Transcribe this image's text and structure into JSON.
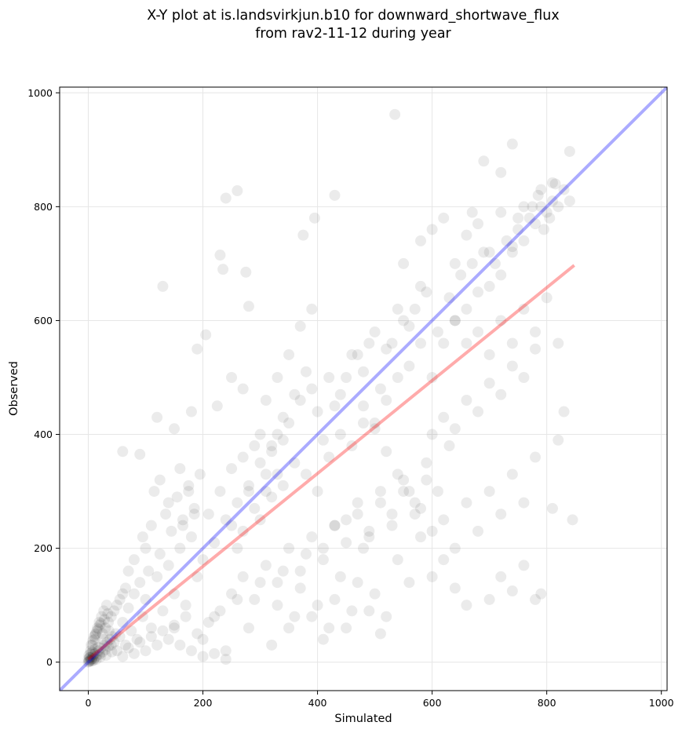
{
  "chart_data": {
    "type": "scatter",
    "title": "X-Y plot at is.landsvirkjun.b10 for downward_shortwave_flux",
    "subtitle": "from rav2-11-12 during year",
    "xlabel": "Simulated",
    "ylabel": "Observed",
    "xlim": [
      -50,
      1010
    ],
    "ylim": [
      -50,
      1010
    ],
    "xticks": [
      0,
      200,
      400,
      600,
      800,
      1000
    ],
    "yticks": [
      0,
      200,
      400,
      600,
      800,
      1000
    ],
    "xtick_labels": [
      "0",
      "200",
      "400",
      "600",
      "800",
      "1000"
    ],
    "ytick_labels": [
      "0",
      "200",
      "400",
      "600",
      "800",
      "1000"
    ],
    "grid": true,
    "point_color": "#000000",
    "point_opacity": 0.08,
    "identity_line": {
      "from": [
        -50,
        -50
      ],
      "to": [
        1010,
        1010
      ],
      "color": "#0000ff"
    },
    "fit_line": {
      "from": [
        0,
        5
      ],
      "to": [
        848,
        697
      ],
      "color": "#ff0000"
    },
    "points": [
      [
        0,
        0
      ],
      [
        2,
        3
      ],
      [
        5,
        4
      ],
      [
        8,
        10
      ],
      [
        10,
        6
      ],
      [
        12,
        15
      ],
      [
        15,
        12
      ],
      [
        18,
        20
      ],
      [
        20,
        14
      ],
      [
        22,
        25
      ],
      [
        25,
        18
      ],
      [
        28,
        30
      ],
      [
        30,
        22
      ],
      [
        33,
        35
      ],
      [
        35,
        28
      ],
      [
        38,
        40
      ],
      [
        40,
        30
      ],
      [
        42,
        45
      ],
      [
        45,
        35
      ],
      [
        48,
        50
      ],
      [
        3,
        8
      ],
      [
        6,
        2
      ],
      [
        9,
        14
      ],
      [
        14,
        5
      ],
      [
        17,
        26
      ],
      [
        21,
        9
      ],
      [
        26,
        40
      ],
      [
        31,
        12
      ],
      [
        36,
        55
      ],
      [
        41,
        18
      ],
      [
        1,
        12
      ],
      [
        4,
        20
      ],
      [
        7,
        30
      ],
      [
        11,
        40
      ],
      [
        13,
        50
      ],
      [
        16,
        60
      ],
      [
        19,
        70
      ],
      [
        23,
        80
      ],
      [
        27,
        90
      ],
      [
        32,
        100
      ],
      [
        50,
        20
      ],
      [
        55,
        45
      ],
      [
        60,
        70
      ],
      [
        65,
        30
      ],
      [
        70,
        95
      ],
      [
        75,
        55
      ],
      [
        80,
        120
      ],
      [
        85,
        40
      ],
      [
        90,
        140
      ],
      [
        95,
        80
      ],
      [
        100,
        110
      ],
      [
        110,
        60
      ],
      [
        120,
        150
      ],
      [
        130,
        90
      ],
      [
        140,
        170
      ],
      [
        150,
        120
      ],
      [
        160,
        200
      ],
      [
        170,
        100
      ],
      [
        180,
        220
      ],
      [
        190,
        150
      ],
      [
        100,
        200
      ],
      [
        110,
        240
      ],
      [
        125,
        190
      ],
      [
        135,
        260
      ],
      [
        145,
        230
      ],
      [
        155,
        290
      ],
      [
        165,
        250
      ],
      [
        175,
        310
      ],
      [
        185,
        270
      ],
      [
        195,
        330
      ],
      [
        200,
        180
      ],
      [
        210,
        260
      ],
      [
        220,
        210
      ],
      [
        230,
        300
      ],
      [
        240,
        250
      ],
      [
        250,
        340
      ],
      [
        260,
        200
      ],
      [
        270,
        360
      ],
      [
        280,
        300
      ],
      [
        290,
        380
      ],
      [
        300,
        250
      ],
      [
        310,
        330
      ],
      [
        320,
        290
      ],
      [
        330,
        400
      ],
      [
        340,
        310
      ],
      [
        350,
        420
      ],
      [
        360,
        350
      ],
      [
        370,
        460
      ],
      [
        380,
        330
      ],
      [
        390,
        480
      ],
      [
        400,
        300
      ],
      [
        410,
        390
      ],
      [
        420,
        360
      ],
      [
        430,
        450
      ],
      [
        440,
        400
      ],
      [
        450,
        500
      ],
      [
        460,
        380
      ],
      [
        470,
        540
      ],
      [
        480,
        420
      ],
      [
        490,
        560
      ],
      [
        500,
        420
      ],
      [
        510,
        480
      ],
      [
        520,
        460
      ],
      [
        530,
        560
      ],
      [
        540,
        500
      ],
      [
        550,
        600
      ],
      [
        560,
        520
      ],
      [
        570,
        620
      ],
      [
        580,
        560
      ],
      [
        590,
        650
      ],
      [
        600,
        500
      ],
      [
        610,
        580
      ],
      [
        620,
        560
      ],
      [
        630,
        640
      ],
      [
        640,
        600
      ],
      [
        650,
        680
      ],
      [
        660,
        620
      ],
      [
        670,
        700
      ],
      [
        680,
        650
      ],
      [
        690,
        720
      ],
      [
        700,
        660
      ],
      [
        710,
        700
      ],
      [
        720,
        680
      ],
      [
        730,
        740
      ],
      [
        740,
        720
      ],
      [
        750,
        760
      ],
      [
        760,
        740
      ],
      [
        770,
        780
      ],
      [
        780,
        770
      ],
      [
        790,
        800
      ],
      [
        800,
        790
      ],
      [
        810,
        810
      ],
      [
        820,
        800
      ],
      [
        830,
        830
      ],
      [
        840,
        810
      ],
      [
        815,
        840
      ],
      [
        805,
        780
      ],
      [
        795,
        760
      ],
      [
        785,
        820
      ],
      [
        775,
        800
      ],
      [
        200,
        40
      ],
      [
        220,
        80
      ],
      [
        240,
        20
      ],
      [
        260,
        110
      ],
      [
        280,
        60
      ],
      [
        300,
        140
      ],
      [
        320,
        30
      ],
      [
        340,
        160
      ],
      [
        360,
        80
      ],
      [
        380,
        190
      ],
      [
        400,
        100
      ],
      [
        420,
        60
      ],
      [
        440,
        150
      ],
      [
        460,
        90
      ],
      [
        480,
        200
      ],
      [
        500,
        120
      ],
      [
        520,
        80
      ],
      [
        540,
        180
      ],
      [
        560,
        140
      ],
      [
        580,
        220
      ],
      [
        600,
        150
      ],
      [
        620,
        250
      ],
      [
        640,
        200
      ],
      [
        660,
        280
      ],
      [
        680,
        230
      ],
      [
        700,
        300
      ],
      [
        720,
        260
      ],
      [
        740,
        330
      ],
      [
        760,
        280
      ],
      [
        780,
        360
      ],
      [
        700,
        110
      ],
      [
        720,
        150
      ],
      [
        740,
        125
      ],
      [
        760,
        170
      ],
      [
        780,
        110
      ],
      [
        790,
        120
      ],
      [
        810,
        270
      ],
      [
        820,
        390
      ],
      [
        830,
        440
      ],
      [
        845,
        250
      ],
      [
        660,
        100
      ],
      [
        640,
        130
      ],
      [
        620,
        180
      ],
      [
        600,
        230
      ],
      [
        580,
        270
      ],
      [
        560,
        300
      ],
      [
        540,
        330
      ],
      [
        520,
        370
      ],
      [
        500,
        410
      ],
      [
        480,
        450
      ],
      [
        130,
        660
      ],
      [
        240,
        815
      ],
      [
        260,
        828
      ],
      [
        230,
        715
      ],
      [
        235,
        690
      ],
      [
        275,
        685
      ],
      [
        280,
        625
      ],
      [
        375,
        750
      ],
      [
        395,
        780
      ],
      [
        430,
        820
      ],
      [
        535,
        962
      ],
      [
        740,
        910
      ],
      [
        840,
        897
      ],
      [
        810,
        842
      ],
      [
        790,
        830
      ],
      [
        690,
        880
      ],
      [
        720,
        860
      ],
      [
        760,
        800
      ],
      [
        750,
        780
      ],
      [
        670,
        790
      ],
      [
        400,
        440
      ],
      [
        420,
        500
      ],
      [
        440,
        470
      ],
      [
        460,
        540
      ],
      [
        480,
        510
      ],
      [
        500,
        580
      ],
      [
        520,
        550
      ],
      [
        540,
        620
      ],
      [
        560,
        590
      ],
      [
        580,
        660
      ],
      [
        300,
        400
      ],
      [
        310,
        460
      ],
      [
        320,
        380
      ],
      [
        330,
        500
      ],
      [
        340,
        430
      ],
      [
        350,
        540
      ],
      [
        360,
        470
      ],
      [
        370,
        590
      ],
      [
        380,
        510
      ],
      [
        390,
        620
      ],
      [
        150,
        60
      ],
      [
        160,
        30
      ],
      [
        170,
        80
      ],
      [
        180,
        20
      ],
      [
        190,
        50
      ],
      [
        200,
        10
      ],
      [
        210,
        70
      ],
      [
        220,
        15
      ],
      [
        230,
        90
      ],
      [
        240,
        5
      ],
      [
        60,
        370
      ],
      [
        90,
        365
      ],
      [
        120,
        430
      ],
      [
        150,
        410
      ],
      [
        180,
        440
      ],
      [
        190,
        550
      ],
      [
        205,
        575
      ],
      [
        225,
        450
      ],
      [
        250,
        500
      ],
      [
        270,
        480
      ],
      [
        250,
        240
      ],
      [
        260,
        280
      ],
      [
        270,
        230
      ],
      [
        280,
        310
      ],
      [
        290,
        270
      ],
      [
        300,
        350
      ],
      [
        310,
        300
      ],
      [
        320,
        370
      ],
      [
        330,
        330
      ],
      [
        340,
        390
      ],
      [
        450,
        250
      ],
      [
        470,
        280
      ],
      [
        490,
        230
      ],
      [
        510,
        300
      ],
      [
        530,
        260
      ],
      [
        550,
        320
      ],
      [
        570,
        280
      ],
      [
        590,
        350
      ],
      [
        610,
        300
      ],
      [
        630,
        380
      ],
      [
        600,
        400
      ],
      [
        620,
        430
      ],
      [
        640,
        410
      ],
      [
        660,
        460
      ],
      [
        680,
        440
      ],
      [
        700,
        490
      ],
      [
        720,
        470
      ],
      [
        740,
        520
      ],
      [
        760,
        500
      ],
      [
        780,
        550
      ],
      [
        640,
        600
      ],
      [
        660,
        560
      ],
      [
        680,
        580
      ],
      [
        700,
        540
      ],
      [
        720,
        600
      ],
      [
        740,
        560
      ],
      [
        760,
        620
      ],
      [
        780,
        580
      ],
      [
        800,
        640
      ],
      [
        820,
        560
      ],
      [
        550,
        700
      ],
      [
        580,
        740
      ],
      [
        600,
        760
      ],
      [
        620,
        780
      ],
      [
        640,
        700
      ],
      [
        660,
        750
      ],
      [
        680,
        770
      ],
      [
        700,
        720
      ],
      [
        720,
        790
      ],
      [
        740,
        730
      ],
      [
        330,
        100
      ],
      [
        350,
        60
      ],
      [
        370,
        130
      ],
      [
        390,
        80
      ],
      [
        410,
        40
      ],
      [
        430,
        110
      ],
      [
        450,
        60
      ],
      [
        470,
        140
      ],
      [
        490,
        90
      ],
      [
        510,
        50
      ],
      [
        80,
        180
      ],
      [
        95,
        220
      ],
      [
        105,
        160
      ],
      [
        115,
        300
      ],
      [
        125,
        320
      ],
      [
        140,
        280
      ],
      [
        160,
        340
      ],
      [
        175,
        300
      ],
      [
        185,
        260
      ],
      [
        165,
        240
      ],
      [
        30,
        60
      ],
      [
        40,
        80
      ],
      [
        50,
        100
      ],
      [
        60,
        120
      ],
      [
        35,
        70
      ],
      [
        45,
        90
      ],
      [
        55,
        110
      ],
      [
        65,
        130
      ],
      [
        25,
        50
      ],
      [
        70,
        160
      ],
      [
        5,
        30
      ],
      [
        10,
        45
      ],
      [
        15,
        55
      ],
      [
        20,
        65
      ],
      [
        8,
        38
      ],
      [
        12,
        48
      ],
      [
        18,
        58
      ],
      [
        22,
        68
      ],
      [
        28,
        75
      ],
      [
        34,
        85
      ],
      [
        60,
        10
      ],
      [
        70,
        25
      ],
      [
        80,
        15
      ],
      [
        90,
        35
      ],
      [
        100,
        20
      ],
      [
        110,
        45
      ],
      [
        120,
        30
      ],
      [
        130,
        55
      ],
      [
        140,
        40
      ],
      [
        150,
        65
      ],
      [
        0,
        5
      ],
      [
        1,
        1
      ],
      [
        2,
        8
      ],
      [
        3,
        2
      ],
      [
        4,
        15
      ],
      [
        6,
        6
      ],
      [
        7,
        18
      ],
      [
        9,
        3
      ],
      [
        11,
        22
      ],
      [
        13,
        9
      ],
      [
        410,
        200
      ],
      [
        430,
        240
      ],
      [
        450,
        210
      ],
      [
        470,
        260
      ],
      [
        490,
        220
      ],
      [
        510,
        280
      ],
      [
        530,
        240
      ],
      [
        550,
        300
      ],
      [
        570,
        260
      ],
      [
        590,
        320
      ],
      [
        250,
        120
      ],
      [
        270,
        150
      ],
      [
        290,
        110
      ],
      [
        310,
        170
      ],
      [
        330,
        140
      ],
      [
        350,
        200
      ],
      [
        370,
        160
      ],
      [
        390,
        220
      ],
      [
        410,
        180
      ],
      [
        430,
        240
      ]
    ]
  }
}
